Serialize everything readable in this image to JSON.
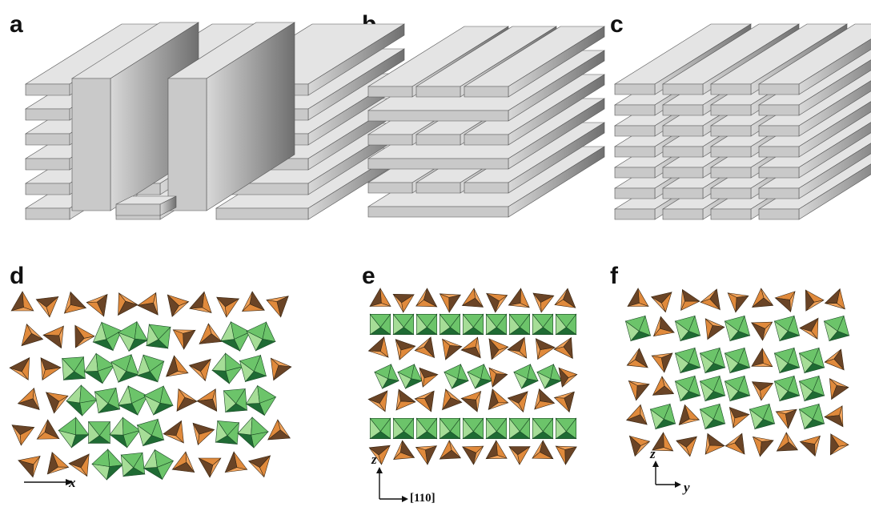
{
  "panels": [
    {
      "id": "a",
      "label": "a"
    },
    {
      "id": "b",
      "label": "b"
    },
    {
      "id": "c",
      "label": "c"
    },
    {
      "id": "d",
      "label": "d",
      "axes": {
        "x": "x"
      }
    },
    {
      "id": "e",
      "label": "e",
      "axes": {
        "z": "z",
        "h": "[110]"
      }
    },
    {
      "id": "f",
      "label": "f",
      "axes": {
        "z": "z",
        "y": "y"
      }
    }
  ],
  "colors": {
    "slab_top": "#e4e4e4",
    "slab_front": "#c9c9c9",
    "slab_side_dark": "#6f6f6f",
    "tetra_orange": "#e08a3c",
    "tetra_dark": "#6a4426",
    "octa_green": "#6cc46a",
    "octa_dark": "#1f6b34",
    "octa_light": "#a6dd97"
  }
}
